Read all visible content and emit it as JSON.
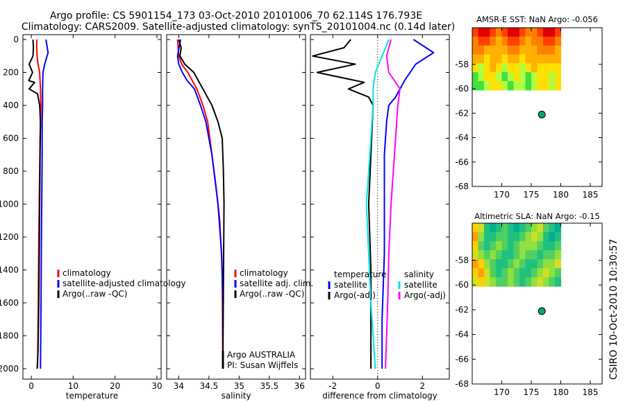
{
  "figure": {
    "title_line1": "Argo profile: CS 5901154_173 03-Oct-2010 20101006_70 62.114S 176.793E",
    "title_line2": "Climatology: CARS2009. Satellite-adjusted climatology: synTS_20101004.nc (0.14d later)",
    "side_stamp": "CSIRO 10-Oct-2010 10:30:57",
    "inst_line1": "Argo AUSTRALIA",
    "inst_line2": "PI: Susan Wijffels"
  },
  "colors": {
    "climatology": "#ff0000",
    "satellite": "#0000ff",
    "argo": "#000000",
    "salinity_satellite": "#00e5e5",
    "salinity_argo": "#ff00ff",
    "float_marker": "#00aa66"
  },
  "chart_data": [
    {
      "id": "temperature_profile",
      "type": "line",
      "xlabel": "temperature",
      "xlim": [
        -2,
        31
      ],
      "ylim": [
        2050,
        0
      ],
      "xticks": [
        0,
        10,
        20,
        30
      ],
      "yticks": [
        0,
        200,
        400,
        600,
        800,
        1000,
        1200,
        1400,
        1600,
        1800,
        2000
      ],
      "legend": [
        "climatology",
        "satellite-adjusted climatology",
        "Argo(..raw -QC)"
      ],
      "series": [
        {
          "name": "climatology",
          "color": "#ff0000",
          "x": [
            1.3,
            1.3,
            1.4,
            1.6,
            2.0,
            2.2,
            2.3,
            2.2,
            2.1,
            2.0,
            1.9,
            1.8,
            1.7,
            1.6,
            1.5
          ],
          "y": [
            0,
            50,
            100,
            150,
            200,
            300,
            400,
            500,
            600,
            800,
            1000,
            1200,
            1500,
            1800,
            1990
          ]
        },
        {
          "name": "satellite-adjusted climatology",
          "color": "#0000ff",
          "x": [
            3.5,
            4.0,
            3.2,
            2.8,
            2.7,
            2.7,
            2.6,
            2.6,
            2.5,
            2.4,
            2.3,
            2.2
          ],
          "y": [
            0,
            80,
            150,
            200,
            300,
            400,
            500,
            700,
            1000,
            1300,
            1700,
            2000
          ]
        },
        {
          "name": "Argo(..raw -QC)",
          "color": "#000000",
          "x": [
            0.4,
            0.5,
            0.4,
            -0.5,
            0.3,
            -0.6,
            0.8,
            -0.5,
            1.5,
            2.0,
            2.2,
            2.1,
            2.0,
            1.9,
            1.8,
            1.6,
            1.4
          ],
          "y": [
            0,
            50,
            100,
            150,
            200,
            250,
            260,
            300,
            330,
            400,
            500,
            700,
            1000,
            1300,
            1600,
            1900,
            2000
          ]
        }
      ]
    },
    {
      "id": "salinity_profile",
      "type": "line",
      "xlabel": "salinity",
      "xlim": [
        33.8,
        36.1
      ],
      "ylim": [
        2050,
        0
      ],
      "xticks": [
        34,
        34.5,
        35,
        35.5,
        36
      ],
      "xticklabels": [
        "34",
        "34.5",
        "35",
        "35.5",
        "36"
      ],
      "legend": [
        "climatology",
        "satellite adj. clim.",
        "Argo(..raw -QC)"
      ],
      "series": [
        {
          "name": "climatology",
          "color": "#ff0000",
          "x": [
            33.98,
            34.0,
            34.05,
            34.15,
            34.3,
            34.4,
            34.48,
            34.55,
            34.62,
            34.68,
            34.72,
            34.73
          ],
          "y": [
            0,
            100,
            150,
            200,
            300,
            400,
            500,
            700,
            900,
            1100,
            1400,
            2000
          ]
        },
        {
          "name": "satellite adj. clim.",
          "color": "#0000ff",
          "x": [
            34.03,
            33.98,
            34.0,
            34.06,
            34.14,
            34.26,
            34.36,
            34.45,
            34.55,
            34.65,
            34.71,
            34.73,
            34.73
          ],
          "y": [
            0,
            100,
            150,
            200,
            250,
            300,
            400,
            500,
            700,
            1000,
            1300,
            1600,
            2000
          ]
        },
        {
          "name": "Argo(..raw -QC)",
          "color": "#000000",
          "x": [
            34.0,
            34.04,
            34.02,
            34.1,
            34.25,
            34.4,
            34.55,
            34.65,
            34.72,
            34.74,
            34.75,
            34.74,
            34.73
          ],
          "y": [
            0,
            50,
            100,
            150,
            200,
            300,
            400,
            500,
            600,
            800,
            1000,
            1500,
            2000
          ]
        }
      ]
    },
    {
      "id": "difference_profile",
      "type": "line",
      "xlabel": "difference from climatology",
      "xlim": [
        -3,
        3.2
      ],
      "ylim": [
        2050,
        0
      ],
      "xticks": [
        -2,
        0,
        2
      ],
      "legend_groups": [
        {
          "title": "temperature",
          "entries": [
            "satellite",
            "Argo(-adj)"
          ]
        },
        {
          "title": "salinity",
          "entries": [
            "satellite",
            "Argo(-adj)"
          ]
        }
      ],
      "series": [
        {
          "name": "temperature satellite",
          "color": "#0000ff",
          "x": [
            1.6,
            2.5,
            1.7,
            1.2,
            0.8,
            0.5,
            0.4,
            0.3,
            0.3,
            0.3,
            0.2,
            0.2
          ],
          "y": [
            0,
            80,
            150,
            250,
            350,
            400,
            500,
            700,
            1000,
            1300,
            1700,
            2000
          ]
        },
        {
          "name": "temperature Argo(-adj)",
          "color": "#000000",
          "x": [
            -1.2,
            -1.5,
            -2.9,
            -1.0,
            -2.7,
            -0.6,
            -1.3,
            -0.4,
            -0.2,
            -0.3,
            -0.4,
            -0.3,
            -0.3,
            -0.3
          ],
          "y": [
            0,
            50,
            100,
            150,
            200,
            260,
            300,
            350,
            400,
            700,
            1000,
            1400,
            1800,
            2000
          ]
        },
        {
          "name": "salinity satellite",
          "color": "#00e5e5",
          "x": [
            0.5,
            0.2,
            -0.1,
            -0.2,
            -0.2,
            -0.3,
            -0.4,
            -0.5,
            -0.4,
            -0.3,
            -0.2,
            -0.1
          ],
          "y": [
            0,
            100,
            200,
            300,
            400,
            600,
            800,
            1000,
            1300,
            1600,
            1800,
            2000
          ]
        },
        {
          "name": "salinity Argo(-adj)",
          "color": "#ff00ff",
          "x": [
            0.6,
            0.4,
            0.5,
            1.0,
            0.9,
            0.8,
            0.7,
            0.6,
            0.5,
            0.45,
            0.4,
            0.35
          ],
          "y": [
            0,
            100,
            200,
            300,
            400,
            600,
            800,
            1000,
            1300,
            1600,
            1800,
            2000
          ]
        }
      ]
    },
    {
      "id": "sst_map",
      "type": "heatmap",
      "title": "AMSR-E SST: NaN Argo: -0.056",
      "xlim": [
        165,
        187
      ],
      "ylim": [
        -68,
        -55
      ],
      "xticks": [
        170,
        175,
        180,
        185
      ],
      "yticks": [
        -58,
        -60,
        -62,
        -64,
        -66,
        -68
      ],
      "float": {
        "lon": 176.79,
        "lat": -62.11
      },
      "patch_extent": {
        "lon": [
          165,
          180
        ],
        "lat": [
          -60.1,
          -55
        ]
      },
      "palette": [
        "#e00000",
        "#ff4000",
        "#ff8000",
        "#ffb000",
        "#ffe000",
        "#b0ff40",
        "#40e040"
      ],
      "grid": [
        [
          1,
          0,
          0,
          1,
          2,
          1,
          0,
          0,
          1,
          2,
          2,
          1,
          0,
          0,
          1
        ],
        [
          2,
          1,
          1,
          2,
          3,
          2,
          1,
          1,
          2,
          3,
          2,
          2,
          1,
          1,
          2
        ],
        [
          2,
          2,
          3,
          3,
          3,
          3,
          2,
          2,
          3,
          3,
          3,
          2,
          2,
          2,
          3
        ],
        [
          3,
          3,
          4,
          3,
          3,
          4,
          3,
          3,
          4,
          3,
          3,
          3,
          3,
          3,
          3
        ],
        [
          4,
          5,
          4,
          3,
          4,
          5,
          4,
          4,
          5,
          4,
          3,
          4,
          4,
          4,
          4
        ],
        [
          6,
          5,
          4,
          4,
          5,
          6,
          5,
          4,
          5,
          6,
          5,
          4,
          4,
          5,
          4
        ],
        [
          6,
          6,
          5,
          4,
          4,
          5,
          6,
          5,
          5,
          6,
          5,
          4,
          4,
          5,
          4
        ]
      ]
    },
    {
      "id": "sla_map",
      "type": "heatmap",
      "title": "Altimetric SLA: NaN Argo: -0.15",
      "xlim": [
        165,
        187
      ],
      "ylim": [
        -68,
        -55
      ],
      "xticks": [
        170,
        175,
        180,
        185
      ],
      "yticks": [
        -58,
        -60,
        -62,
        -64,
        -66,
        -68
      ],
      "float": {
        "lon": 176.79,
        "lat": -62.11
      },
      "patch_extent": {
        "lon": [
          165,
          180
        ],
        "lat": [
          -60.1,
          -55
        ]
      },
      "palette": [
        "#00b090",
        "#20c080",
        "#50d060",
        "#90e040",
        "#d0e020",
        "#ffd000",
        "#ffa000"
      ],
      "grid": [
        [
          5,
          4,
          1,
          0,
          1,
          2,
          1,
          0,
          1,
          2,
          3,
          4,
          2,
          1,
          0
        ],
        [
          6,
          3,
          1,
          1,
          2,
          2,
          1,
          1,
          2,
          3,
          4,
          3,
          1,
          0,
          1
        ],
        [
          5,
          2,
          1,
          2,
          3,
          2,
          1,
          2,
          3,
          3,
          3,
          2,
          1,
          1,
          2
        ],
        [
          4,
          3,
          2,
          3,
          2,
          1,
          1,
          2,
          3,
          2,
          2,
          1,
          2,
          2,
          3
        ],
        [
          6,
          5,
          3,
          2,
          1,
          1,
          2,
          3,
          2,
          1,
          1,
          2,
          3,
          3,
          4
        ],
        [
          5,
          6,
          4,
          2,
          1,
          2,
          3,
          2,
          1,
          1,
          2,
          3,
          4,
          3,
          2
        ],
        [
          4,
          5,
          4,
          3,
          2,
          2,
          3,
          2,
          1,
          2,
          3,
          4,
          3,
          2,
          1
        ]
      ]
    }
  ]
}
